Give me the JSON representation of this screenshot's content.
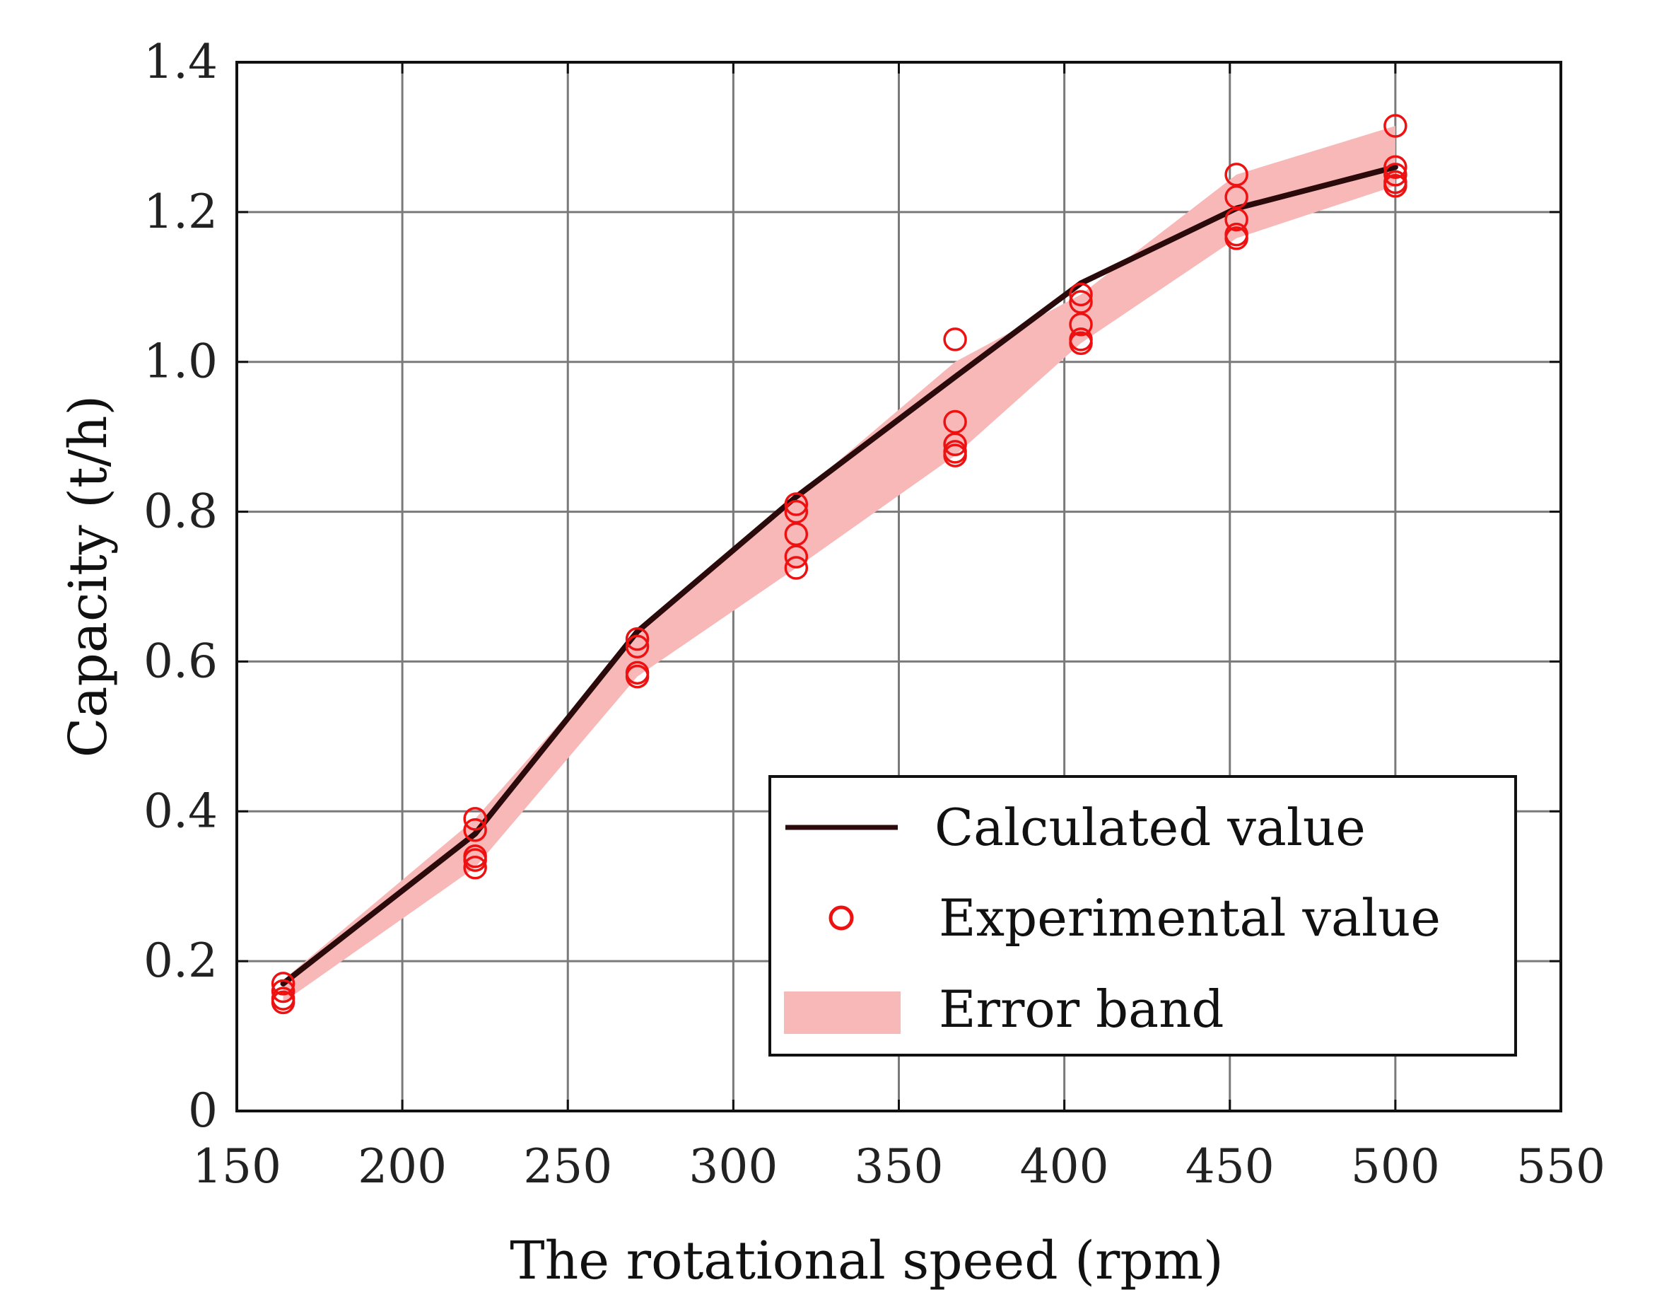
{
  "chart_data": {
    "type": "line",
    "title": "",
    "xlabel": "The rotational speed (rpm)",
    "ylabel": "Capacity (t/h)",
    "xlim": [
      150,
      550
    ],
    "ylim": [
      0,
      1.4
    ],
    "xticks": [
      150,
      200,
      250,
      300,
      350,
      400,
      450,
      500,
      550
    ],
    "yticks": [
      0,
      0.2,
      0.4,
      0.6,
      0.8,
      1.0,
      1.2,
      1.4
    ],
    "xtick_labels": [
      "150",
      "200",
      "250",
      "300",
      "350",
      "400",
      "450",
      "500",
      "550"
    ],
    "ytick_labels": [
      "0",
      "0.2",
      "0.4",
      "0.6",
      "0.8",
      "1.0",
      "1.2",
      "1.4"
    ],
    "grid": true,
    "legend_position": "bottom-right",
    "series": [
      {
        "name": "Calculated value",
        "kind": "line",
        "color": "#2a0a0a",
        "x": [
          164,
          222,
          271,
          319,
          367,
          405,
          452,
          500
        ],
        "y": [
          0.17,
          0.37,
          0.64,
          0.82,
          0.98,
          1.105,
          1.205,
          1.26
        ]
      },
      {
        "name": "Experimental value",
        "kind": "scatter",
        "color": "#ee1111",
        "points": [
          [
            164,
            0.17
          ],
          [
            164,
            0.16
          ],
          [
            164,
            0.15
          ],
          [
            164,
            0.145
          ],
          [
            222,
            0.39
          ],
          [
            222,
            0.375
          ],
          [
            222,
            0.34
          ],
          [
            222,
            0.335
          ],
          [
            222,
            0.325
          ],
          [
            271,
            0.63
          ],
          [
            271,
            0.62
          ],
          [
            271,
            0.585
          ],
          [
            271,
            0.58
          ],
          [
            319,
            0.81
          ],
          [
            319,
            0.8
          ],
          [
            319,
            0.77
          ],
          [
            319,
            0.74
          ],
          [
            319,
            0.725
          ],
          [
            367,
            1.03
          ],
          [
            367,
            0.92
          ],
          [
            367,
            0.89
          ],
          [
            367,
            0.88
          ],
          [
            367,
            0.875
          ],
          [
            405,
            1.09
          ],
          [
            405,
            1.08
          ],
          [
            405,
            1.05
          ],
          [
            405,
            1.03
          ],
          [
            405,
            1.025
          ],
          [
            452,
            1.25
          ],
          [
            452,
            1.22
          ],
          [
            452,
            1.19
          ],
          [
            452,
            1.17
          ],
          [
            452,
            1.165
          ],
          [
            500,
            1.315
          ],
          [
            500,
            1.26
          ],
          [
            500,
            1.25
          ],
          [
            500,
            1.24
          ],
          [
            500,
            1.235
          ]
        ]
      },
      {
        "name": "Error band",
        "kind": "band",
        "color": "#f8b8b8",
        "x": [
          164,
          222,
          271,
          319,
          367,
          405,
          452,
          500
        ],
        "upper": [
          0.175,
          0.39,
          0.635,
          0.82,
          1.0,
          1.09,
          1.25,
          1.315
        ],
        "lower": [
          0.145,
          0.325,
          0.58,
          0.725,
          0.875,
          1.025,
          1.165,
          1.235
        ]
      }
    ]
  }
}
